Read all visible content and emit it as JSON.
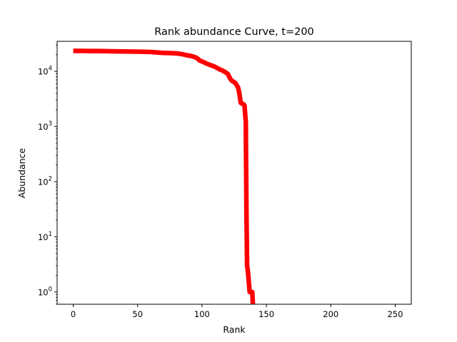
{
  "chart_data": {
    "type": "line",
    "title": "Rank abundance Curve, t=200",
    "xlabel": "Rank",
    "ylabel": "Abundance",
    "xscale": "linear",
    "yscale": "log",
    "xlim": [
      -12.5,
      262.5
    ],
    "ylim": [
      0.6,
      35000
    ],
    "xticks": [
      {
        "value": 0,
        "label": "0"
      },
      {
        "value": 50,
        "label": "50"
      },
      {
        "value": 100,
        "label": "100"
      },
      {
        "value": 150,
        "label": "150"
      },
      {
        "value": 200,
        "label": "200"
      },
      {
        "value": 250,
        "label": "250"
      }
    ],
    "yticks": [
      {
        "value": 1,
        "base": "10",
        "exp": "0"
      },
      {
        "value": 10,
        "base": "10",
        "exp": "1"
      },
      {
        "value": 100,
        "base": "10",
        "exp": "2"
      },
      {
        "value": 1000,
        "base": "10",
        "exp": "3"
      },
      {
        "value": 10000,
        "base": "10",
        "exp": "4"
      }
    ],
    "grid": false,
    "legend": "none",
    "series": [
      {
        "color": "#ff0000",
        "x": [
          0,
          10,
          20,
          30,
          40,
          50,
          60,
          65,
          70,
          75,
          80,
          85,
          88,
          92,
          95,
          97,
          98,
          100,
          102,
          104,
          106,
          108,
          110,
          112,
          114,
          116,
          118,
          120,
          122,
          123,
          124,
          126,
          128,
          129,
          130,
          131,
          132,
          133,
          134,
          134.5,
          135,
          135.5,
          136,
          137,
          138,
          139,
          139.5
        ],
        "y": [
          23500,
          23400,
          23300,
          23100,
          22900,
          22700,
          22500,
          22000,
          21600,
          21400,
          21200,
          20400,
          19600,
          18900,
          17900,
          16800,
          15800,
          15100,
          14400,
          13700,
          13100,
          12600,
          12100,
          11400,
          10800,
          10300,
          9700,
          9000,
          7300,
          6800,
          6600,
          6100,
          5100,
          4000,
          2700,
          2600,
          2550,
          2400,
          1200,
          30,
          3,
          2.5,
          1.9,
          1.0,
          1.0,
          1.0,
          0.6
        ]
      }
    ]
  }
}
